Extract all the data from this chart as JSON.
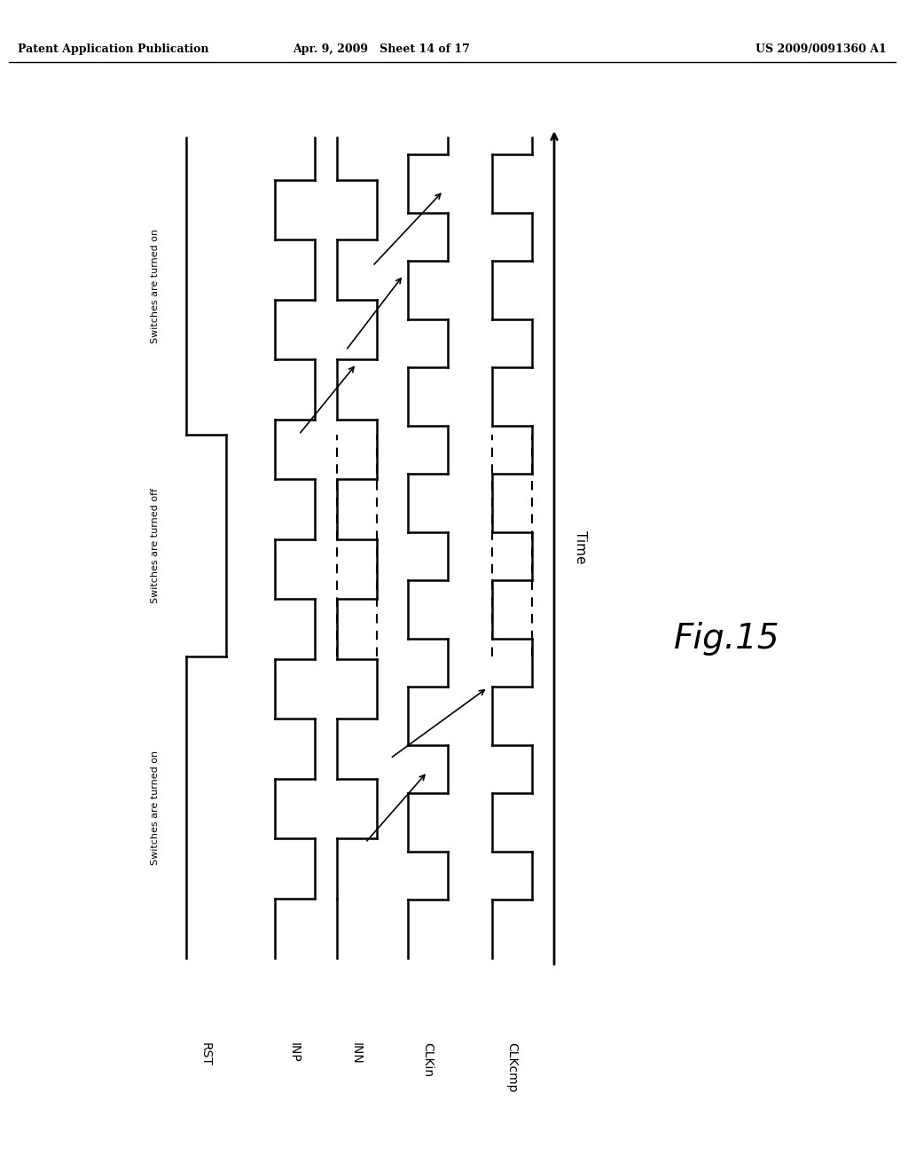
{
  "header_left": "Patent Application Publication",
  "header_mid": "Apr. 9, 2009   Sheet 14 of 17",
  "header_right": "US 2009/0091360 A1",
  "fig_label": "Fig.15",
  "time_label": "Time",
  "signal_labels": [
    "RST",
    "INP",
    "INN",
    "CLKin",
    "CLKcmp"
  ],
  "region_labels": [
    "Switches are turned on",
    "Switches are turned off",
    "Switches are turned on"
  ],
  "background_color": "#ffffff",
  "line_color": "#000000"
}
